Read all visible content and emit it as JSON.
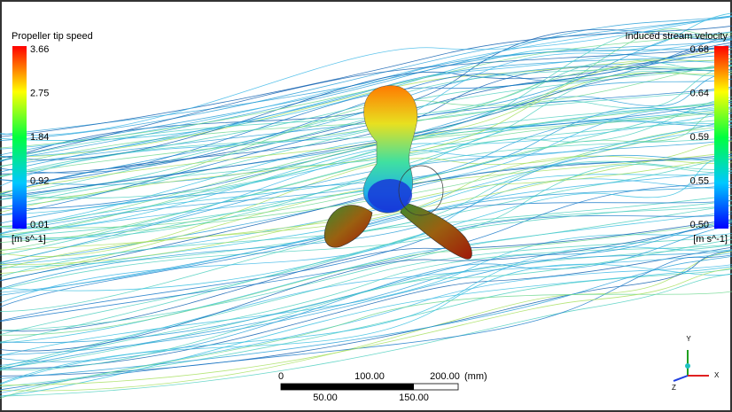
{
  "left_legend": {
    "title": "Propeller tip speed",
    "labels": [
      "3.66",
      "2.75",
      "1.84",
      "0.92",
      "0.01"
    ],
    "unit": "[m s^-1]"
  },
  "right_legend": {
    "title": "Induced stream velocity",
    "labels": [
      "0.68",
      "0.64",
      "0.59",
      "0.55",
      "0.50"
    ],
    "unit": "[m s^-1]"
  },
  "scale_bar": {
    "top_labels": [
      "0",
      "100.00",
      "200.00"
    ],
    "unit": "(mm)",
    "bottom_labels": [
      "50.00",
      "150.00"
    ]
  },
  "axes": {
    "x": "X",
    "y": "Y",
    "z": "Z"
  }
}
